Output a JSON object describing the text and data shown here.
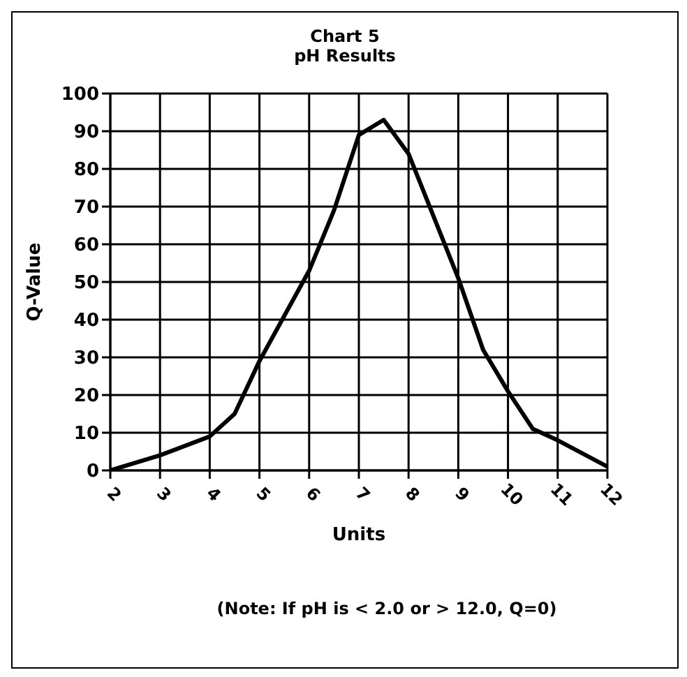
{
  "chart_data": {
    "type": "line",
    "title": "Chart 5",
    "subtitle": "pH Results",
    "xlabel": "Units",
    "ylabel": "Q-Value",
    "annotations": [
      "(Note: If pH is < 2.0 or > 12.0, Q=0)"
    ],
    "x": [
      2,
      3,
      4,
      4.5,
      5,
      6,
      6.5,
      7,
      7.5,
      8,
      9,
      9.5,
      10,
      10.5,
      11,
      12
    ],
    "series": [
      {
        "color": "#000000",
        "values": [
          0,
          4,
          9,
          15,
          29,
          53,
          69,
          89,
          93,
          84,
          51,
          32,
          21,
          11,
          8,
          1
        ]
      }
    ],
    "xlim": [
      2,
      12
    ],
    "xticks": [
      2,
      3,
      4,
      5,
      6,
      7,
      8,
      9,
      10,
      11,
      12
    ],
    "ylim": [
      0,
      100
    ],
    "yticks": [
      0,
      10,
      20,
      30,
      40,
      50,
      60,
      70,
      80,
      90,
      100
    ],
    "grid": true,
    "legend": false,
    "marker": "none",
    "line_style": "solid"
  }
}
